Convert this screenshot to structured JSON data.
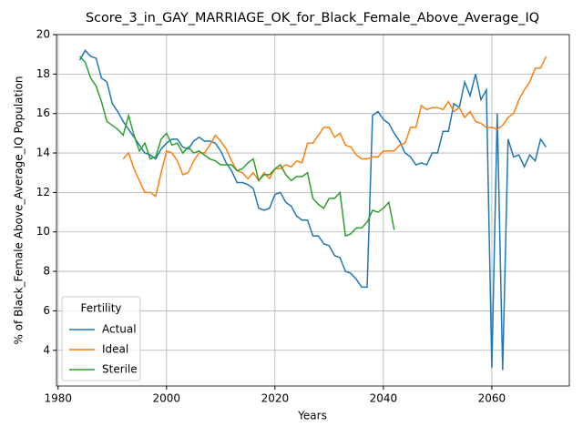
{
  "chart_data": {
    "type": "line",
    "title": "Score_3_in_GAY_MARRIAGE_OK_for_Black_Female_Above_Average_IQ",
    "xlabel": "Years",
    "ylabel": "% of Black_Female Above_Average_IQ Population",
    "x": [
      1984,
      1985,
      1986,
      1987,
      1988,
      1989,
      1990,
      1991,
      1992,
      1993,
      1994,
      1995,
      1996,
      1997,
      1998,
      1999,
      2000,
      2001,
      2002,
      2003,
      2004,
      2005,
      2006,
      2007,
      2008,
      2009,
      2010,
      2011,
      2012,
      2013,
      2014,
      2015,
      2016,
      2017,
      2018,
      2019,
      2020,
      2021,
      2022,
      2023,
      2024,
      2025,
      2026,
      2027,
      2028,
      2029,
      2030,
      2031,
      2032,
      2033,
      2034,
      2035,
      2036,
      2037,
      2038,
      2039,
      2040,
      2041,
      2042,
      2043,
      2044,
      2045,
      2046,
      2047,
      2048,
      2049,
      2050,
      2051,
      2052,
      2053,
      2054,
      2055,
      2056,
      2057,
      2058,
      2059,
      2060,
      2061,
      2062,
      2063,
      2064,
      2065,
      2066,
      2067,
      2068,
      2069,
      2070
    ],
    "series": [
      {
        "name": "Actual",
        "color": "#1f77b4",
        "values": [
          18.7,
          19.2,
          18.9,
          18.8,
          17.8,
          17.6,
          16.5,
          16.1,
          15.6,
          15.2,
          14.8,
          14.4,
          14.0,
          13.9,
          13.7,
          14.2,
          14.5,
          14.7,
          14.7,
          14.3,
          14.2,
          14.6,
          14.8,
          14.6,
          14.6,
          14.5,
          14.1,
          13.5,
          13.1,
          12.5,
          12.5,
          12.4,
          12.2,
          11.2,
          11.1,
          11.2,
          11.9,
          12.0,
          11.5,
          11.3,
          10.8,
          10.6,
          10.6,
          9.8,
          9.8,
          9.4,
          9.3,
          8.8,
          8.7,
          8.0,
          7.9,
          7.6,
          7.2,
          7.2,
          15.9,
          16.1,
          15.7,
          15.5,
          15.0,
          14.6,
          14.0,
          13.8,
          13.4,
          13.5,
          13.4,
          14.0,
          14.0,
          15.1,
          15.1,
          16.5,
          16.3,
          17.6,
          16.9,
          18.0,
          16.7,
          17.2,
          3.1,
          16.0,
          3.0,
          14.7,
          13.8,
          13.9,
          13.3,
          13.9,
          13.6,
          14.7,
          14.3
        ]
      },
      {
        "name": "Ideal",
        "color": "#ff7f0e",
        "values": [
          null,
          null,
          null,
          null,
          null,
          null,
          null,
          null,
          13.7,
          14.0,
          13.2,
          12.6,
          12.0,
          12.0,
          11.8,
          13.0,
          14.1,
          14.0,
          13.6,
          12.9,
          13.0,
          13.6,
          14.0,
          14.0,
          14.4,
          14.9,
          14.6,
          14.2,
          13.6,
          13.1,
          13.0,
          12.7,
          13.0,
          12.6,
          13.0,
          12.7,
          13.2,
          13.2,
          13.4,
          13.3,
          13.6,
          13.5,
          14.5,
          14.5,
          14.9,
          15.3,
          15.3,
          14.8,
          15.0,
          14.4,
          14.3,
          13.9,
          13.7,
          13.7,
          13.8,
          13.8,
          14.1,
          14.1,
          14.1,
          14.4,
          14.5,
          15.3,
          15.3,
          16.4,
          16.2,
          16.3,
          16.3,
          16.2,
          16.6,
          16.1,
          16.3,
          15.8,
          16.1,
          15.6,
          15.5,
          15.3,
          15.3,
          15.2,
          15.4,
          15.8,
          16.0,
          16.7,
          17.2,
          17.6,
          18.3,
          18.3,
          18.9
        ]
      },
      {
        "name": "Sterile",
        "color": "#2ca02c",
        "values": [
          18.9,
          18.6,
          17.8,
          17.4,
          16.6,
          15.6,
          15.4,
          15.2,
          14.9,
          15.9,
          14.9,
          14.1,
          14.5,
          13.7,
          13.8,
          14.7,
          15.0,
          14.4,
          14.5,
          14.0,
          14.3,
          14.0,
          14.1,
          13.9,
          13.7,
          13.6,
          13.4,
          13.4,
          13.4,
          13.1,
          13.2,
          13.5,
          13.7,
          12.6,
          12.9,
          12.9,
          13.2,
          13.4,
          12.9,
          12.6,
          12.8,
          12.8,
          13.0,
          11.7,
          11.4,
          11.2,
          11.7,
          11.7,
          12.0,
          9.8,
          9.9,
          10.2,
          10.2,
          10.5,
          11.1,
          11.0,
          11.2,
          11.5,
          10.1,
          null,
          null,
          null,
          null,
          null,
          null,
          null,
          null,
          null,
          null,
          null,
          null,
          null,
          null,
          null,
          null,
          null,
          null,
          null,
          null,
          null,
          null,
          null,
          null,
          null,
          null,
          null,
          null
        ]
      }
    ],
    "xlim": [
      1979.7,
      2074.3
    ],
    "xticks": [
      1980,
      2000,
      2020,
      2040,
      2060
    ],
    "ylim": [
      2.19,
      20.0
    ],
    "yticks": [
      4,
      6,
      8,
      10,
      12,
      14,
      16,
      18,
      20
    ],
    "grid": true,
    "legend_title": "Fertility",
    "legend_position": "lower left"
  }
}
